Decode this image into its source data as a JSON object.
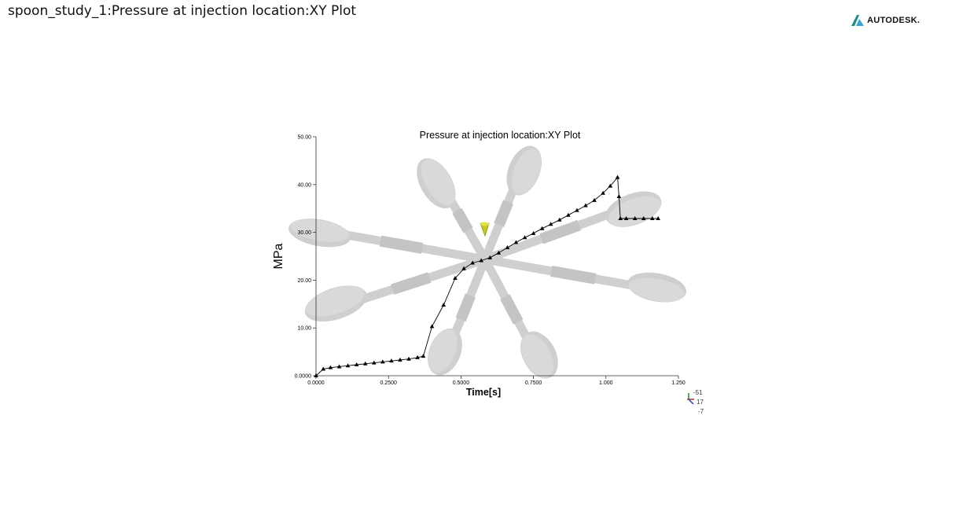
{
  "page": {
    "title": "spoon_study_1:Pressure at injection location:XY Plot",
    "brand": "AUTODESK."
  },
  "colors": {
    "logo_primary": "#1f8c8a",
    "logo_secondary": "#3aa3d2",
    "series": "#000000",
    "model_fill": "#cfcfcf",
    "gate_marker": "#c8c820"
  },
  "icons": {
    "brand_logo": "autodesk-logo-icon",
    "gate_marker": "injection-cone-icon",
    "triad": "axis-triad-icon"
  },
  "triad": {
    "labels": [
      "-51",
      "17",
      "-7"
    ]
  },
  "chart_data": {
    "type": "line",
    "title": "Pressure at injection location:XY Plot",
    "xlabel": "Time[s]",
    "ylabel": "MPa",
    "xlim": [
      0,
      1.25
    ],
    "ylim": [
      0,
      50
    ],
    "x_ticks": [
      0,
      0.25,
      0.5,
      0.75,
      1.0,
      1.25
    ],
    "x_tick_labels": [
      "0.0000",
      "0.2500",
      "0.5000",
      "0.7500",
      "1.000",
      "1.250"
    ],
    "y_ticks": [
      0,
      10,
      20,
      30,
      40,
      50
    ],
    "y_tick_labels": [
      "0.0000",
      "10.00",
      "20.00",
      "30.00",
      "40.00",
      "50.00"
    ],
    "grid": false,
    "marker": "triangle",
    "series": [
      {
        "x": [
          0,
          0.025,
          0.05,
          0.08,
          0.11,
          0.14,
          0.17,
          0.2,
          0.23,
          0.26,
          0.29,
          0.32,
          0.35,
          0.37,
          0.4,
          0.44,
          0.48,
          0.51,
          0.54,
          0.57,
          0.6,
          0.63,
          0.66,
          0.69,
          0.72,
          0.75,
          0.78,
          0.81,
          0.84,
          0.87,
          0.9,
          0.93,
          0.96,
          0.99,
          1.015,
          1.04,
          1.045,
          1.05,
          1.07,
          1.1,
          1.13,
          1.16,
          1.18
        ],
        "y": [
          0,
          1.4,
          1.7,
          1.9,
          2.1,
          2.3,
          2.5,
          2.7,
          2.9,
          3.1,
          3.3,
          3.5,
          3.8,
          4.1,
          10.3,
          14.8,
          20.4,
          22.4,
          23.6,
          24.1,
          24.7,
          25.7,
          26.8,
          27.9,
          28.9,
          29.8,
          30.8,
          31.7,
          32.6,
          33.6,
          34.6,
          35.6,
          36.7,
          38.2,
          39.7,
          41.5,
          37.5,
          32.9,
          32.9,
          32.9,
          32.9,
          32.9,
          32.9
        ]
      }
    ]
  }
}
